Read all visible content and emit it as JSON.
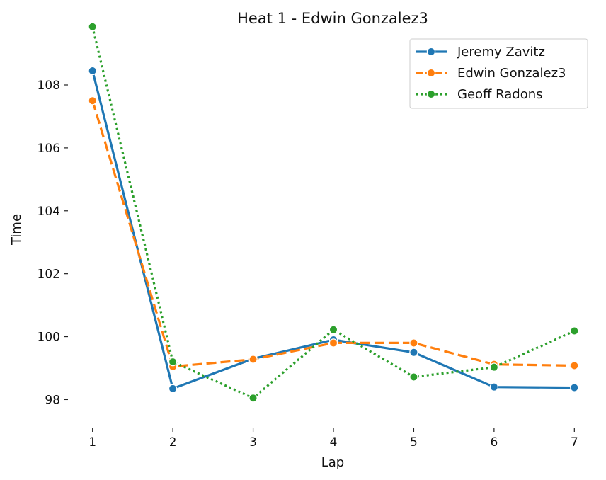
{
  "chart_data": {
    "type": "line",
    "title": "Heat 1 - Edwin Gonzalez3",
    "xlabel": "Lap",
    "ylabel": "Time",
    "x": [
      1,
      2,
      3,
      4,
      5,
      6,
      7
    ],
    "xlim": [
      0.8,
      7.2
    ],
    "ylim": [
      97.2,
      109.8
    ],
    "yticks": [
      98,
      100,
      102,
      104,
      106,
      108
    ],
    "grid": false,
    "legend_position": "top-right",
    "series": [
      {
        "name": "Jeremy Zavitz",
        "color": "#1f77b4",
        "dash": "solid",
        "values": [
          108.45,
          98.35,
          99.3,
          99.9,
          99.5,
          98.4,
          98.38
        ]
      },
      {
        "name": "Edwin Gonzalez3",
        "color": "#ff7f0e",
        "dash": "dashed",
        "values": [
          107.5,
          99.05,
          99.28,
          99.8,
          99.8,
          99.12,
          99.08
        ]
      },
      {
        "name": "Geoff Radons",
        "color": "#2ca02c",
        "dash": "dotted",
        "values": [
          109.85,
          99.2,
          98.05,
          100.22,
          98.72,
          99.03,
          100.18
        ]
      }
    ]
  }
}
